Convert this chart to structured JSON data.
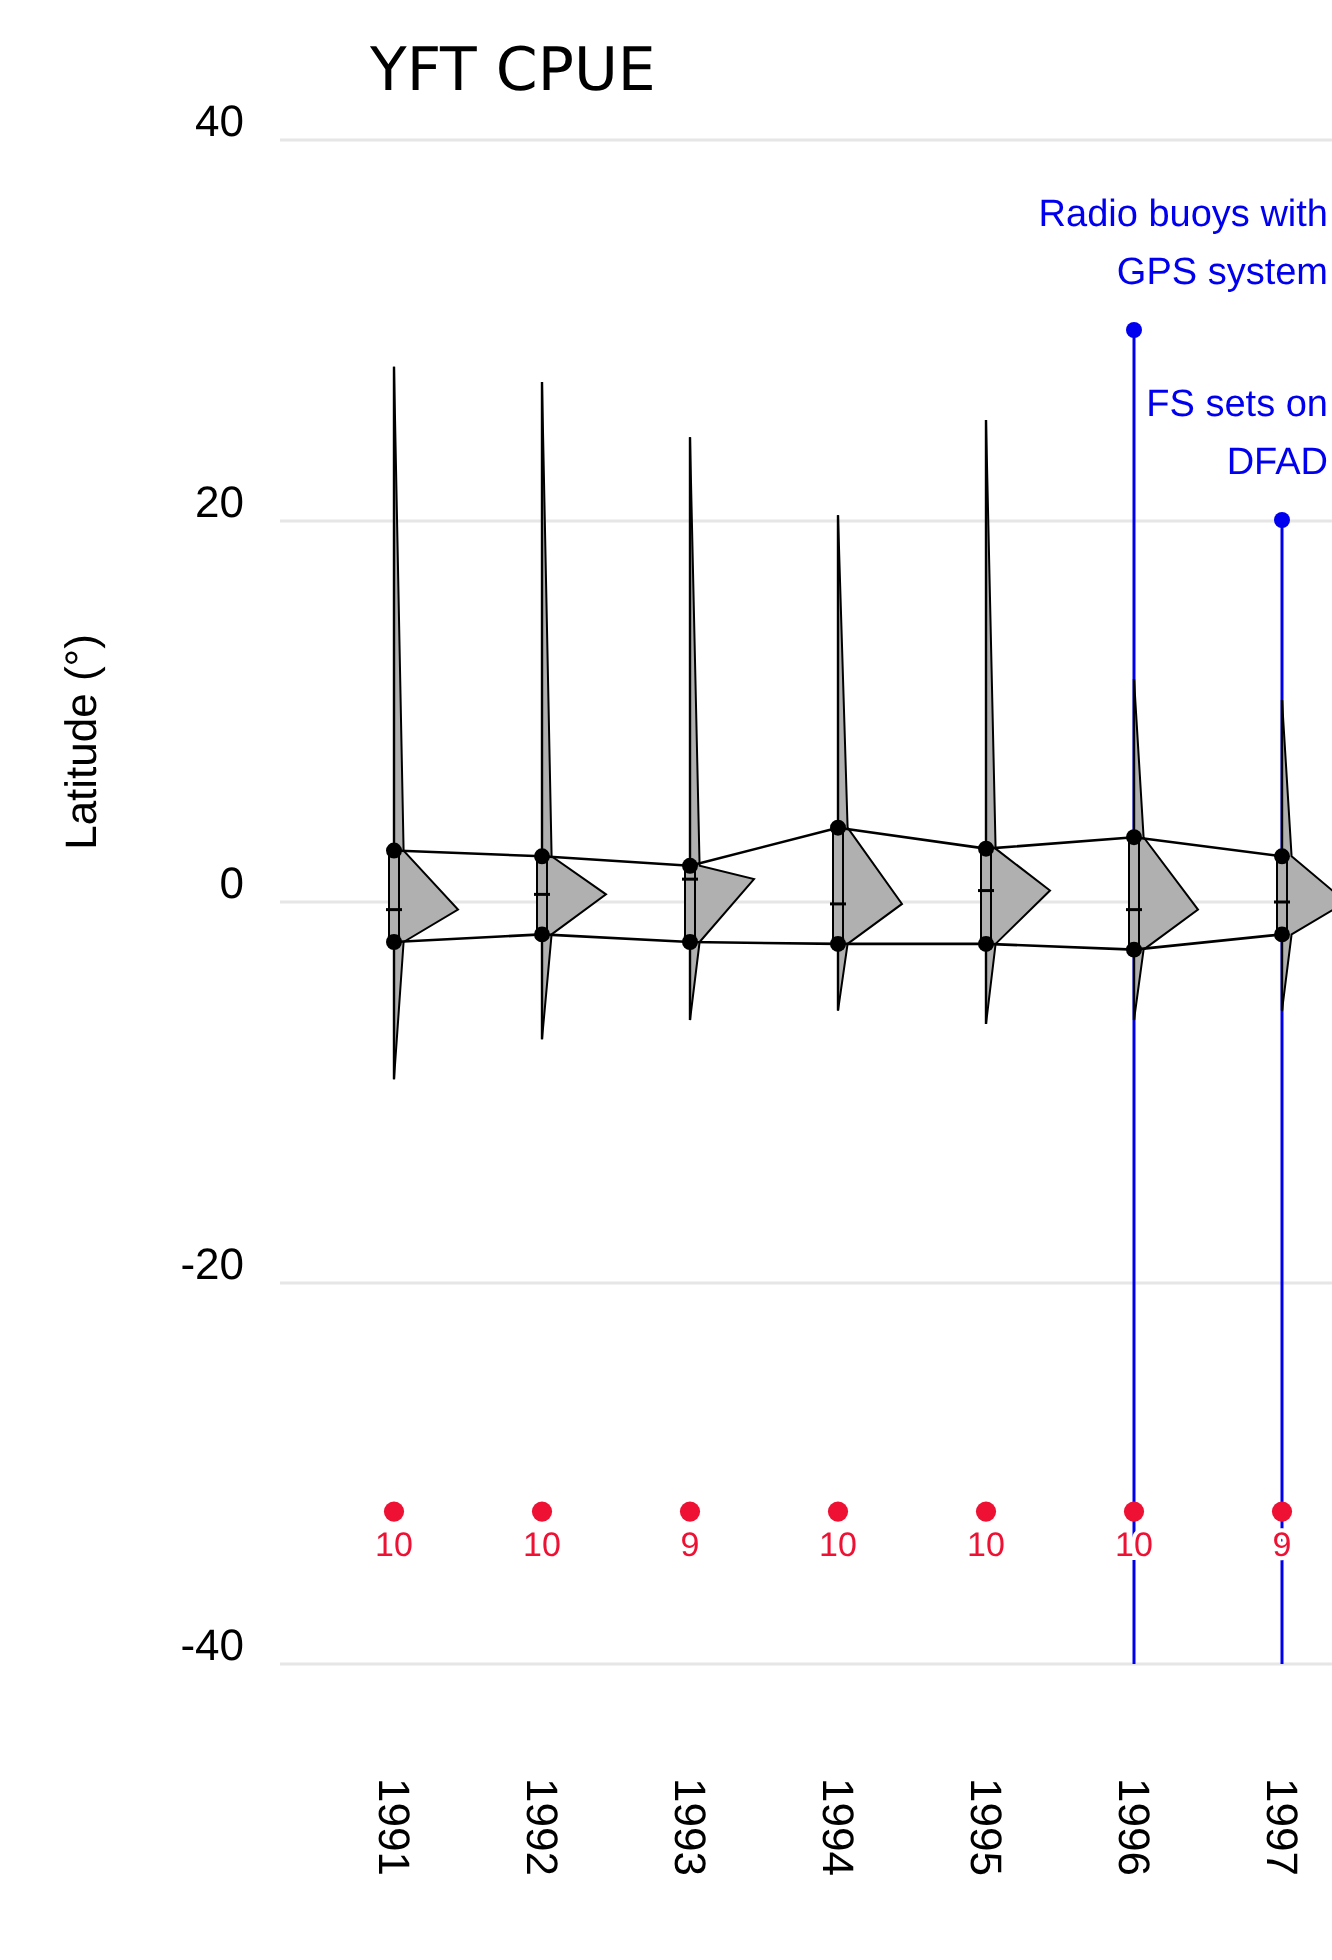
{
  "chart_data": {
    "type": "box",
    "title": "YFT CPUE",
    "ylabel": "Latitude (°)",
    "categories": [
      "1991",
      "1992",
      "1993",
      "1994",
      "1995",
      "1996",
      "1997"
    ],
    "boxes": [
      {
        "low": -9.3,
        "q1": -2.1,
        "median": -0.4,
        "q3": 2.7,
        "high": 28.1
      },
      {
        "low": -7.2,
        "q1": -1.7,
        "median": 0.4,
        "q3": 2.4,
        "high": 27.3
      },
      {
        "low": -6.2,
        "q1": -2.1,
        "median": 1.2,
        "q3": 1.9,
        "high": 24.4
      },
      {
        "low": -5.7,
        "q1": -2.2,
        "median": -0.1,
        "q3": 3.9,
        "high": 20.3
      },
      {
        "low": -6.4,
        "q1": -2.2,
        "median": 0.6,
        "q3": 2.8,
        "high": 25.3
      },
      {
        "low": -6.2,
        "q1": -2.5,
        "median": -0.4,
        "q3": 3.4,
        "high": 11.7
      },
      {
        "low": -5.7,
        "q1": -1.7,
        "median": 0,
        "q3": 2.4,
        "high": 10.6
      }
    ],
    "series": [
      {
        "type": "line",
        "color": "#000000",
        "marker": "circle",
        "values": [
          2.7,
          2.4,
          1.9,
          3.9,
          2.8,
          3.4,
          2.4
        ]
      },
      {
        "type": "line",
        "color": "#000000",
        "marker": "circle",
        "values": [
          -2.1,
          -1.7,
          -2.1,
          -2.2,
          -2.2,
          -2.5,
          -1.7
        ]
      },
      {
        "type": "scatter",
        "color": "#ee1133",
        "marker": "circle",
        "values": [
          -32,
          -32,
          -32,
          -32,
          -32,
          -32,
          -32
        ]
      }
    ],
    "annotations": [
      {
        "text": "10",
        "x": "1991",
        "y": -32
      },
      {
        "text": "10",
        "x": "1992",
        "y": -32
      },
      {
        "text": "9",
        "x": "1993",
        "y": -32
      },
      {
        "text": "10",
        "x": "1994",
        "y": -32
      },
      {
        "text": "10",
        "x": "1995",
        "y": -32
      },
      {
        "text": "10",
        "x": "1996",
        "y": -32
      },
      {
        "text": "9",
        "x": "1997",
        "y": -32
      }
    ],
    "ref_lines": [
      {
        "axis": "x",
        "value": "1996",
        "label": "Radio buoys with GPS system",
        "color": "#0000ee"
      },
      {
        "axis": "x",
        "value": "1997",
        "label": "FS sets on DFAD",
        "color": "#0000ee"
      }
    ],
    "ylim": [
      -40,
      40
    ],
    "yticks": [
      -40,
      -20,
      0,
      20,
      40
    ],
    "grid": "y",
    "line_style": "solid"
  }
}
